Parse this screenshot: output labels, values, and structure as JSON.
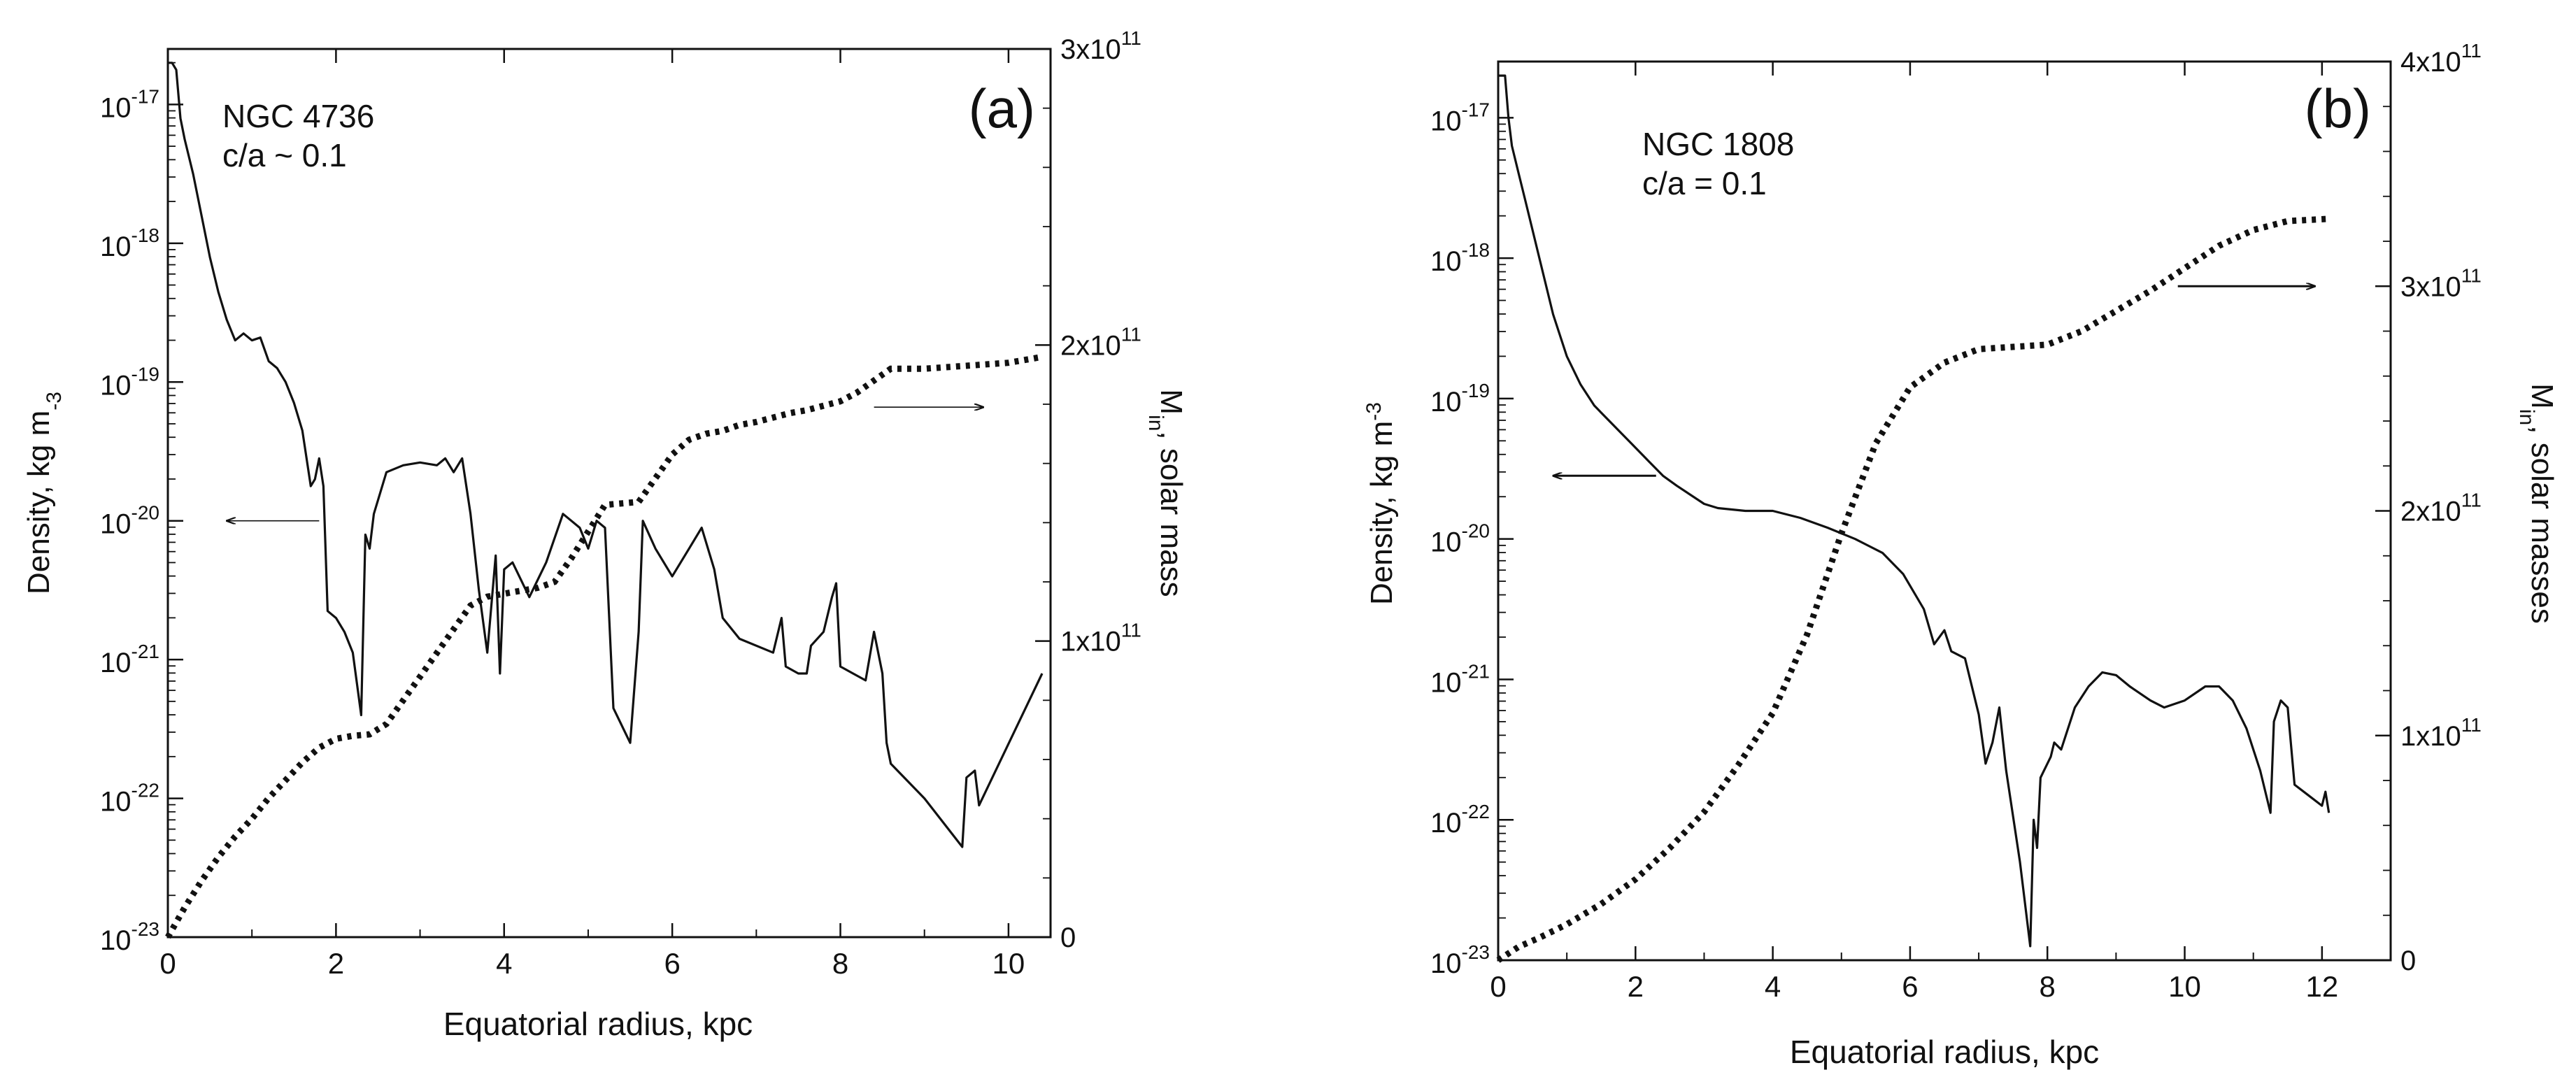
{
  "chart_data": [
    {
      "type": "line",
      "panel_label": "(a)",
      "annotation": [
        "NGC 4736",
        "c/a ~ 0.1"
      ],
      "xlabel": "Equatorial radius, kpc",
      "ylabel_left": "Density, kg m-3",
      "ylabel_right": "Min, solar mass",
      "xlim": [
        0,
        10.5
      ],
      "xticks": [
        0,
        2,
        4,
        6,
        8,
        10
      ],
      "ylim_left_log10": [
        -23,
        -16.6
      ],
      "yticks_left": [
        -23,
        -22,
        -21,
        -20,
        -19,
        -18,
        -17
      ],
      "ylim_right": [
        0,
        300000000000.0
      ],
      "yticks_right": [
        0,
        100000000000.0,
        200000000000.0,
        300000000000.0
      ],
      "arrows": [
        {
          "from": [
            1.8,
            -20.0
          ],
          "to": [
            0.7,
            -20.0
          ],
          "axis": "left"
        },
        {
          "from": [
            8.4,
            179000000000.0
          ],
          "to": [
            9.7,
            179000000000.0
          ],
          "axis": "right"
        }
      ],
      "series": [
        {
          "name": "Density",
          "axis": "left",
          "style": "solid",
          "points": [
            [
              0.0,
              -16.7
            ],
            [
              0.05,
              -16.7
            ],
            [
              0.1,
              -16.75
            ],
            [
              0.15,
              -17.1
            ],
            [
              0.2,
              -17.25
            ],
            [
              0.3,
              -17.5
            ],
            [
              0.4,
              -17.8
            ],
            [
              0.5,
              -18.1
            ],
            [
              0.6,
              -18.35
            ],
            [
              0.7,
              -18.55
            ],
            [
              0.8,
              -18.7
            ],
            [
              0.9,
              -18.65
            ],
            [
              1.0,
              -18.7
            ],
            [
              1.1,
              -18.68
            ],
            [
              1.2,
              -18.85
            ],
            [
              1.3,
              -18.9
            ],
            [
              1.4,
              -19.0
            ],
            [
              1.5,
              -19.15
            ],
            [
              1.6,
              -19.35
            ],
            [
              1.7,
              -19.75
            ],
            [
              1.75,
              -19.7
            ],
            [
              1.8,
              -19.55
            ],
            [
              1.85,
              -19.75
            ],
            [
              1.9,
              -20.65
            ],
            [
              2.0,
              -20.7
            ],
            [
              2.1,
              -20.8
            ],
            [
              2.2,
              -20.95
            ],
            [
              2.3,
              -21.4
            ],
            [
              2.35,
              -20.1
            ],
            [
              2.4,
              -20.2
            ],
            [
              2.45,
              -19.95
            ],
            [
              2.5,
              -19.85
            ],
            [
              2.6,
              -19.65
            ],
            [
              2.8,
              -19.6
            ],
            [
              3.0,
              -19.58
            ],
            [
              3.2,
              -19.6
            ],
            [
              3.3,
              -19.55
            ],
            [
              3.4,
              -19.65
            ],
            [
              3.5,
              -19.55
            ],
            [
              3.6,
              -19.95
            ],
            [
              3.7,
              -20.5
            ],
            [
              3.8,
              -20.95
            ],
            [
              3.9,
              -20.25
            ],
            [
              3.95,
              -21.1
            ],
            [
              4.0,
              -20.35
            ],
            [
              4.1,
              -20.3
            ],
            [
              4.3,
              -20.55
            ],
            [
              4.5,
              -20.3
            ],
            [
              4.7,
              -19.95
            ],
            [
              4.8,
              -20.0
            ],
            [
              4.9,
              -20.05
            ],
            [
              5.0,
              -20.2
            ],
            [
              5.1,
              -20.0
            ],
            [
              5.2,
              -20.05
            ],
            [
              5.3,
              -21.35
            ],
            [
              5.5,
              -21.6
            ],
            [
              5.6,
              -20.8
            ],
            [
              5.65,
              -20.0
            ],
            [
              5.8,
              -20.2
            ],
            [
              6.0,
              -20.4
            ],
            [
              6.2,
              -20.2
            ],
            [
              6.35,
              -20.05
            ],
            [
              6.5,
              -20.35
            ],
            [
              6.6,
              -20.7
            ],
            [
              6.8,
              -20.85
            ],
            [
              7.2,
              -20.95
            ],
            [
              7.3,
              -20.7
            ],
            [
              7.35,
              -21.05
            ],
            [
              7.5,
              -21.1
            ],
            [
              7.6,
              -21.1
            ],
            [
              7.65,
              -20.9
            ],
            [
              7.8,
              -20.8
            ],
            [
              7.9,
              -20.55
            ],
            [
              7.95,
              -20.45
            ],
            [
              8.0,
              -21.05
            ],
            [
              8.15,
              -21.1
            ],
            [
              8.3,
              -21.15
            ],
            [
              8.4,
              -20.8
            ],
            [
              8.5,
              -21.1
            ],
            [
              8.55,
              -21.6
            ],
            [
              8.6,
              -21.75
            ],
            [
              9.0,
              -22.0
            ],
            [
              9.45,
              -22.35
            ],
            [
              9.5,
              -21.85
            ],
            [
              9.6,
              -21.8
            ],
            [
              9.65,
              -22.05
            ],
            [
              10.4,
              -21.1
            ]
          ]
        },
        {
          "name": "Min",
          "axis": "right",
          "style": "dotted",
          "points": [
            [
              0.0,
              0.0
            ],
            [
              0.2,
              10000000000.0
            ],
            [
              0.4,
              19000000000.0
            ],
            [
              0.6,
              27000000000.0
            ],
            [
              0.8,
              34000000000.0
            ],
            [
              1.0,
              40000000000.0
            ],
            [
              1.2,
              47000000000.0
            ],
            [
              1.4,
              53000000000.0
            ],
            [
              1.6,
              59000000000.0
            ],
            [
              1.8,
              64000000000.0
            ],
            [
              2.0,
              67000000000.0
            ],
            [
              2.2,
              68000000000.0
            ],
            [
              2.4,
              68500000000.0
            ],
            [
              2.6,
              72000000000.0
            ],
            [
              2.8,
              80000000000.0
            ],
            [
              3.0,
              88000000000.0
            ],
            [
              3.2,
              96000000000.0
            ],
            [
              3.4,
              104000000000.0
            ],
            [
              3.6,
              112000000000.0
            ],
            [
              3.8,
              115000000000.0
            ],
            [
              4.0,
              116000000000.0
            ],
            [
              4.2,
              117000000000.0
            ],
            [
              4.4,
              118000000000.0
            ],
            [
              4.6,
              120000000000.0
            ],
            [
              4.8,
              128000000000.0
            ],
            [
              5.0,
              137000000000.0
            ],
            [
              5.2,
              146000000000.0
            ],
            [
              5.6,
              147000000000.0
            ],
            [
              5.8,
              155000000000.0
            ],
            [
              6.0,
              163000000000.0
            ],
            [
              6.2,
              168000000000.0
            ],
            [
              6.4,
              170000000000.0
            ],
            [
              6.6,
              171000000000.0
            ],
            [
              6.8,
              173000000000.0
            ],
            [
              7.0,
              174000000000.0
            ],
            [
              7.4,
              177000000000.0
            ],
            [
              7.6,
              178000000000.0
            ],
            [
              8.0,
              181000000000.0
            ],
            [
              8.2,
              184000000000.0
            ],
            [
              8.4,
              188000000000.0
            ],
            [
              8.6,
              192000000000.0
            ],
            [
              9.0,
              192000000000.0
            ],
            [
              9.5,
              193000000000.0
            ],
            [
              10.0,
              194000000000.0
            ],
            [
              10.4,
              196000000000.0
            ]
          ]
        }
      ]
    },
    {
      "type": "line",
      "panel_label": "(b)",
      "annotation": [
        "NGC 1808",
        "c/a = 0.1"
      ],
      "xlabel": "Equatorial radius, kpc",
      "ylabel_left": "Density, kg m-3",
      "ylabel_right": "Min, solar masses",
      "xlim": [
        0,
        13
      ],
      "xticks": [
        0,
        2,
        4,
        6,
        8,
        10,
        12
      ],
      "ylim_left_log10": [
        -23,
        -16.6
      ],
      "yticks_left": [
        -23,
        -22,
        -21,
        -20,
        -19,
        -18,
        -17
      ],
      "ylim_right": [
        0,
        400000000000.0
      ],
      "yticks_right": [
        0,
        100000000000.0,
        200000000000.0,
        300000000000.0,
        400000000000.0
      ],
      "arrows": [
        {
          "from": [
            2.3,
            -19.55
          ],
          "to": [
            0.8,
            -19.55
          ],
          "axis": "left"
        },
        {
          "from": [
            9.9,
            300000000000.0
          ],
          "to": [
            11.9,
            300000000000.0
          ],
          "axis": "right"
        }
      ],
      "series": [
        {
          "name": "Density",
          "axis": "left",
          "style": "solid",
          "points": [
            [
              0.0,
              -16.7
            ],
            [
              0.1,
              -16.7
            ],
            [
              0.15,
              -17.0
            ],
            [
              0.2,
              -17.2
            ],
            [
              0.3,
              -17.4
            ],
            [
              0.4,
              -17.6
            ],
            [
              0.5,
              -17.8
            ],
            [
              0.6,
              -18.0
            ],
            [
              0.8,
              -18.4
            ],
            [
              1.0,
              -18.7
            ],
            [
              1.2,
              -18.9
            ],
            [
              1.4,
              -19.05
            ],
            [
              1.5,
              -19.1
            ],
            [
              1.8,
              -19.25
            ],
            [
              2.0,
              -19.35
            ],
            [
              2.2,
              -19.45
            ],
            [
              2.4,
              -19.55
            ],
            [
              2.6,
              -19.62
            ],
            [
              3.0,
              -19.75
            ],
            [
              3.2,
              -19.78
            ],
            [
              3.6,
              -19.8
            ],
            [
              4.0,
              -19.8
            ],
            [
              4.4,
              -19.85
            ],
            [
              4.8,
              -19.92
            ],
            [
              5.2,
              -20.0
            ],
            [
              5.6,
              -20.1
            ],
            [
              5.9,
              -20.25
            ],
            [
              6.2,
              -20.5
            ],
            [
              6.35,
              -20.75
            ],
            [
              6.5,
              -20.65
            ],
            [
              6.6,
              -20.8
            ],
            [
              6.8,
              -20.85
            ],
            [
              7.0,
              -21.25
            ],
            [
              7.1,
              -21.6
            ],
            [
              7.2,
              -21.45
            ],
            [
              7.3,
              -21.2
            ],
            [
              7.4,
              -21.65
            ],
            [
              7.6,
              -22.3
            ],
            [
              7.75,
              -22.9
            ],
            [
              7.8,
              -22.0
            ],
            [
              7.85,
              -22.2
            ],
            [
              7.9,
              -21.7
            ],
            [
              8.05,
              -21.55
            ],
            [
              8.1,
              -21.45
            ],
            [
              8.2,
              -21.5
            ],
            [
              8.4,
              -21.2
            ],
            [
              8.6,
              -21.05
            ],
            [
              8.8,
              -20.95
            ],
            [
              9.0,
              -20.97
            ],
            [
              9.2,
              -21.05
            ],
            [
              9.5,
              -21.15
            ],
            [
              9.7,
              -21.2
            ],
            [
              10.0,
              -21.15
            ],
            [
              10.3,
              -21.05
            ],
            [
              10.5,
              -21.05
            ],
            [
              10.7,
              -21.15
            ],
            [
              10.9,
              -21.35
            ],
            [
              11.1,
              -21.65
            ],
            [
              11.25,
              -21.95
            ],
            [
              11.3,
              -21.3
            ],
            [
              11.4,
              -21.15
            ],
            [
              11.5,
              -21.2
            ],
            [
              11.6,
              -21.75
            ],
            [
              12.0,
              -21.9
            ],
            [
              12.05,
              -21.8
            ],
            [
              12.1,
              -21.95
            ]
          ]
        },
        {
          "name": "Min",
          "axis": "right",
          "style": "dotted",
          "points": [
            [
              0.0,
              0.0
            ],
            [
              0.3,
              6000000000.0
            ],
            [
              0.6,
              10000000000.0
            ],
            [
              1.0,
              16000000000.0
            ],
            [
              1.5,
              25000000000.0
            ],
            [
              2.0,
              36000000000.0
            ],
            [
              2.5,
              50000000000.0
            ],
            [
              3.0,
              66000000000.0
            ],
            [
              3.5,
              87000000000.0
            ],
            [
              4.0,
              110000000000.0
            ],
            [
              4.5,
              145000000000.0
            ],
            [
              5.0,
              190000000000.0
            ],
            [
              5.5,
              230000000000.0
            ],
            [
              6.0,
              255000000000.0
            ],
            [
              6.5,
              266000000000.0
            ],
            [
              7.0,
              272000000000.0
            ],
            [
              7.5,
              273000000000.0
            ],
            [
              8.0,
              274000000000.0
            ],
            [
              8.5,
              280000000000.0
            ],
            [
              9.0,
              289000000000.0
            ],
            [
              9.5,
              298000000000.0
            ],
            [
              10.0,
              308000000000.0
            ],
            [
              10.5,
              318000000000.0
            ],
            [
              11.0,
              325000000000.0
            ],
            [
              11.5,
              329000000000.0
            ],
            [
              12.1,
              330000000000.0
            ]
          ]
        }
      ]
    }
  ]
}
